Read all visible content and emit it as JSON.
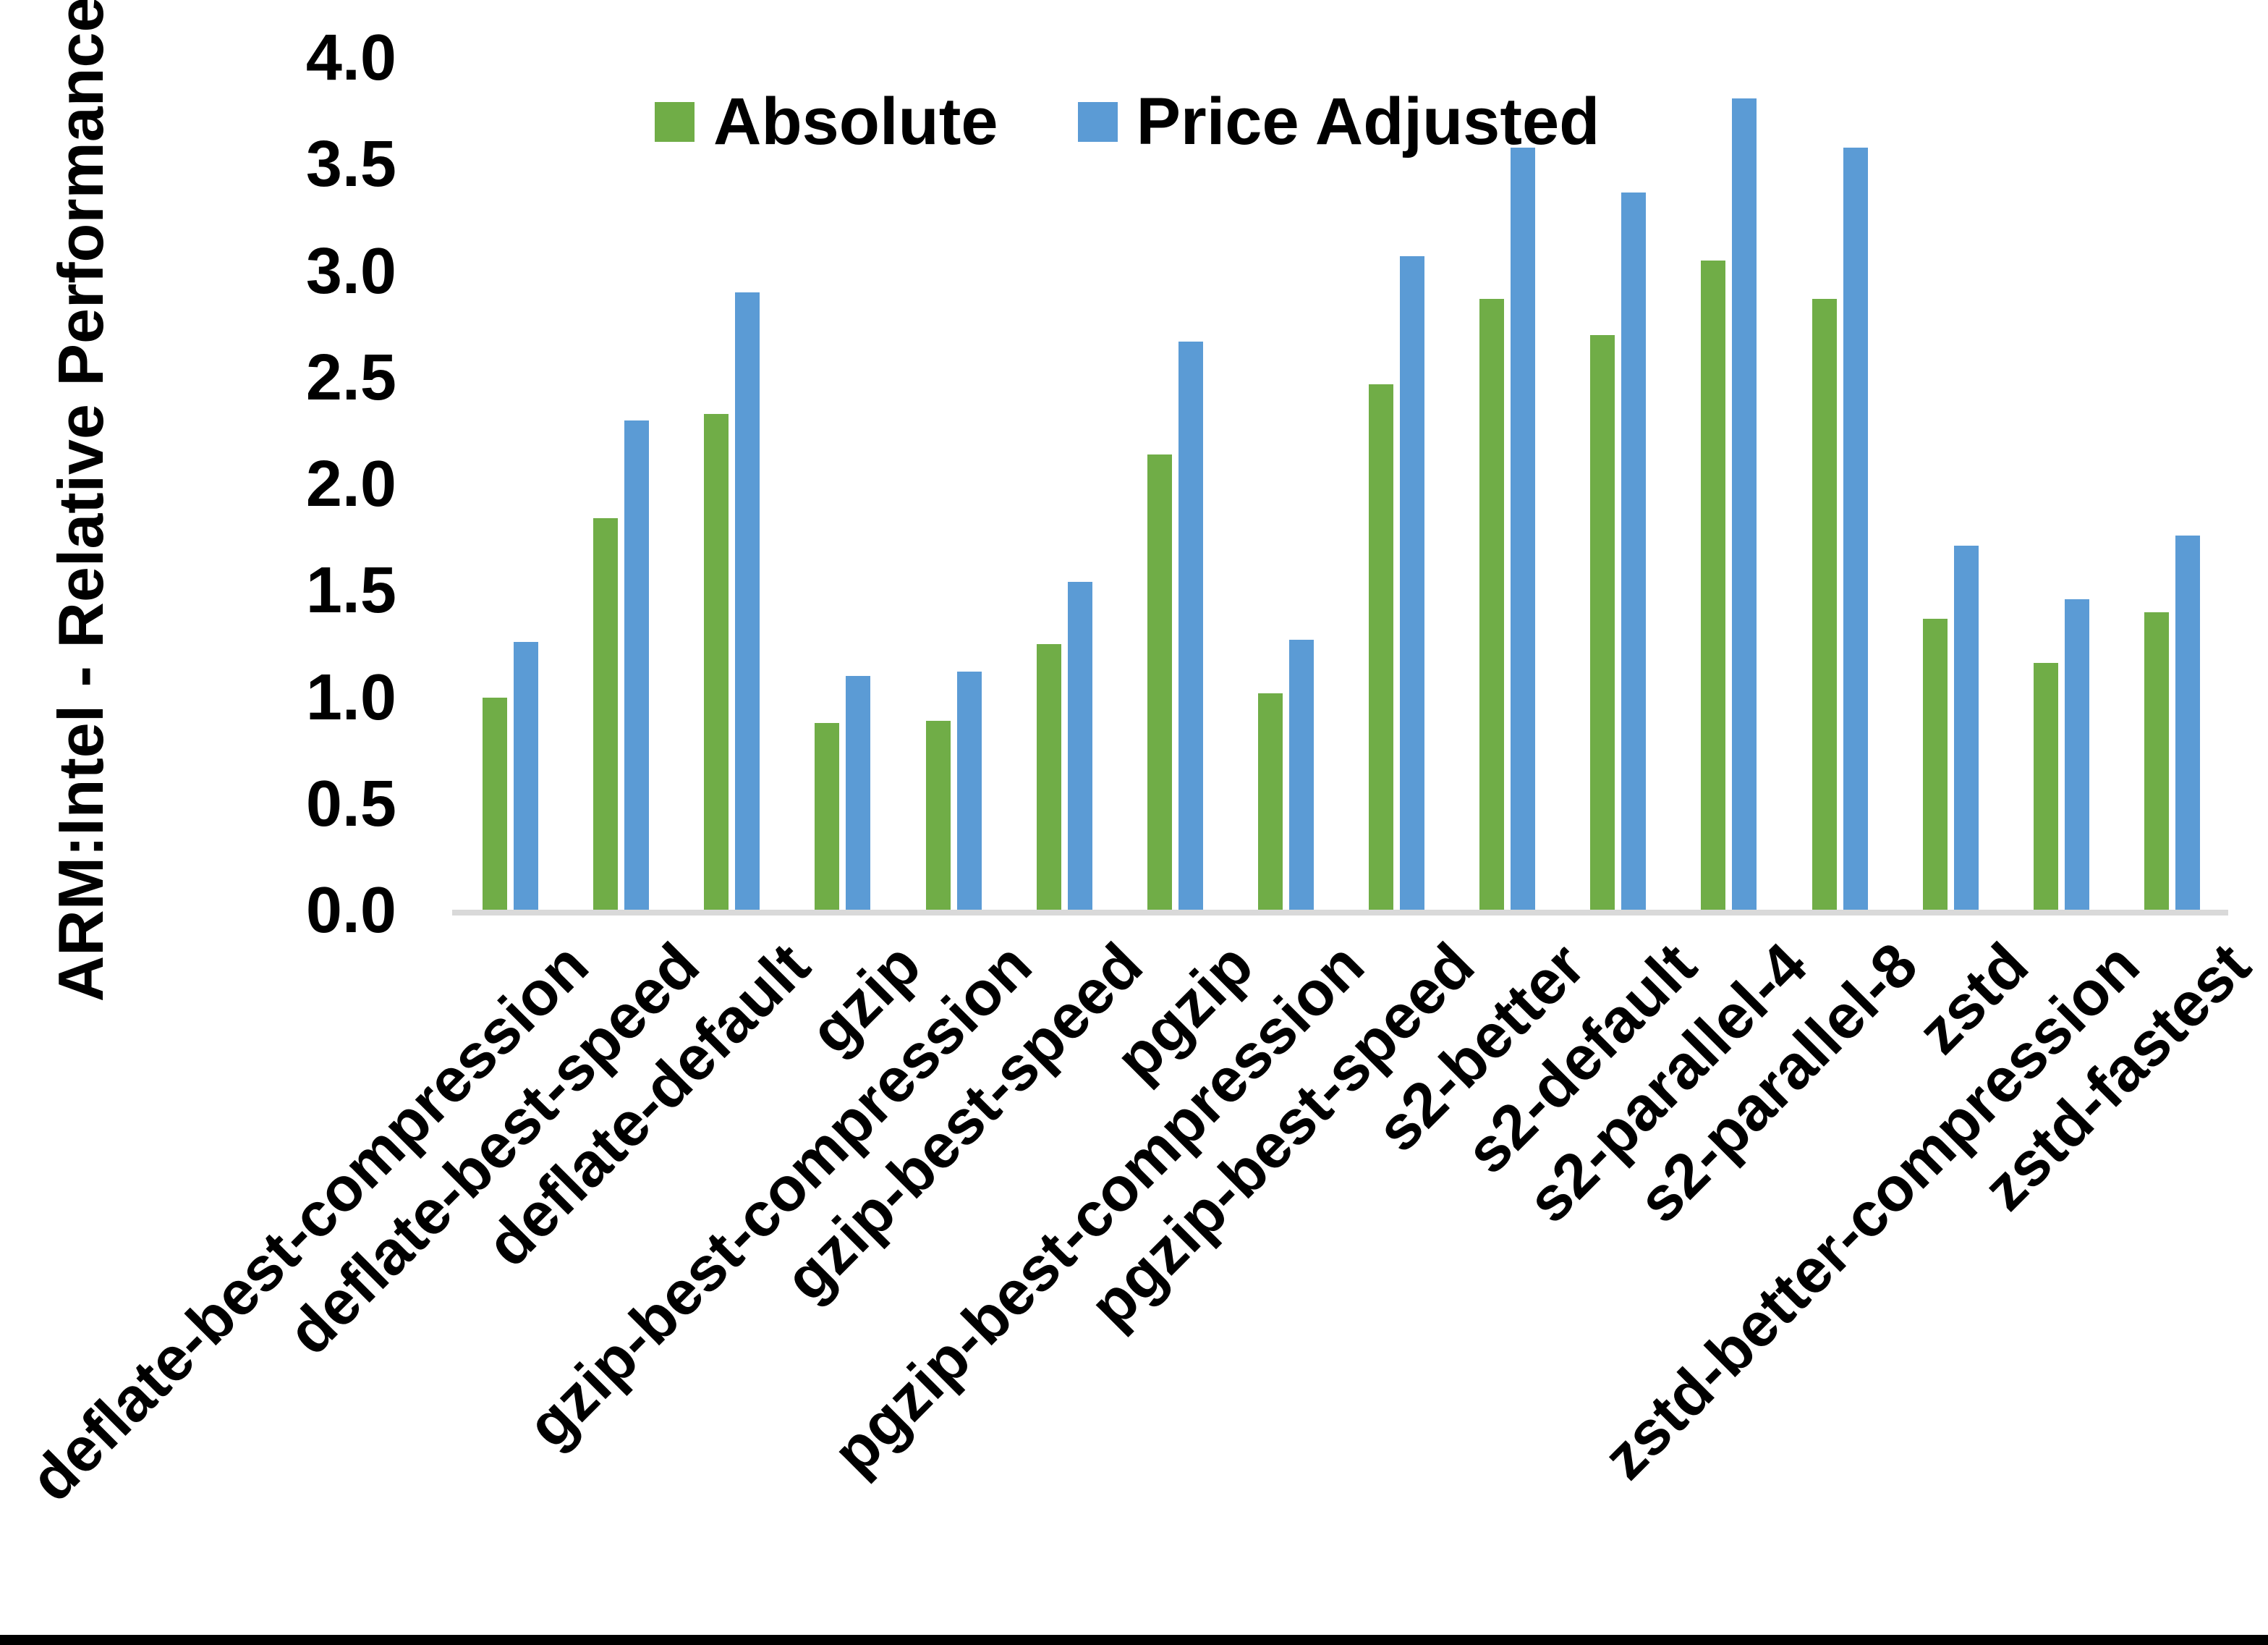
{
  "chart_data": {
    "type": "bar",
    "title": "",
    "ylabel": "ARM:Intel - Relative Performance",
    "xlabel": "",
    "ylim": [
      0.0,
      4.0
    ],
    "ytick_step": 0.5,
    "ytick_decimals": 1,
    "grid": false,
    "legend_position": "top-center",
    "categories": [
      "deflate-best-compression",
      "deflate-best-speed",
      "deflate-default",
      "gzip",
      "gzip-best-compression",
      "gzip-best-speed",
      "pgzip",
      "pgzip-best-compression",
      "pgzip-best-speed",
      "s2-better",
      "s2-default",
      "s2-parallel-4",
      "s2-parallel-8",
      "zstd",
      "zstd-better-compression",
      "zstd-fastest"
    ],
    "series": [
      {
        "name": "Absolute",
        "color": "#70AD47",
        "values": [
          1.0,
          1.84,
          2.33,
          0.88,
          0.89,
          1.25,
          2.14,
          1.02,
          2.47,
          2.87,
          2.7,
          3.05,
          2.87,
          1.37,
          1.16,
          1.4
        ]
      },
      {
        "name": "Price Adjusted",
        "color": "#5B9BD5",
        "values": [
          1.26,
          2.3,
          2.9,
          1.1,
          1.12,
          1.54,
          2.67,
          1.27,
          3.07,
          3.58,
          3.37,
          3.81,
          3.58,
          1.71,
          1.46,
          1.76
        ]
      }
    ],
    "colors": {
      "axis_line": "#D9D9D9",
      "text": "#000000",
      "background": "#FFFFFF",
      "bottom_border": "#000000"
    }
  }
}
